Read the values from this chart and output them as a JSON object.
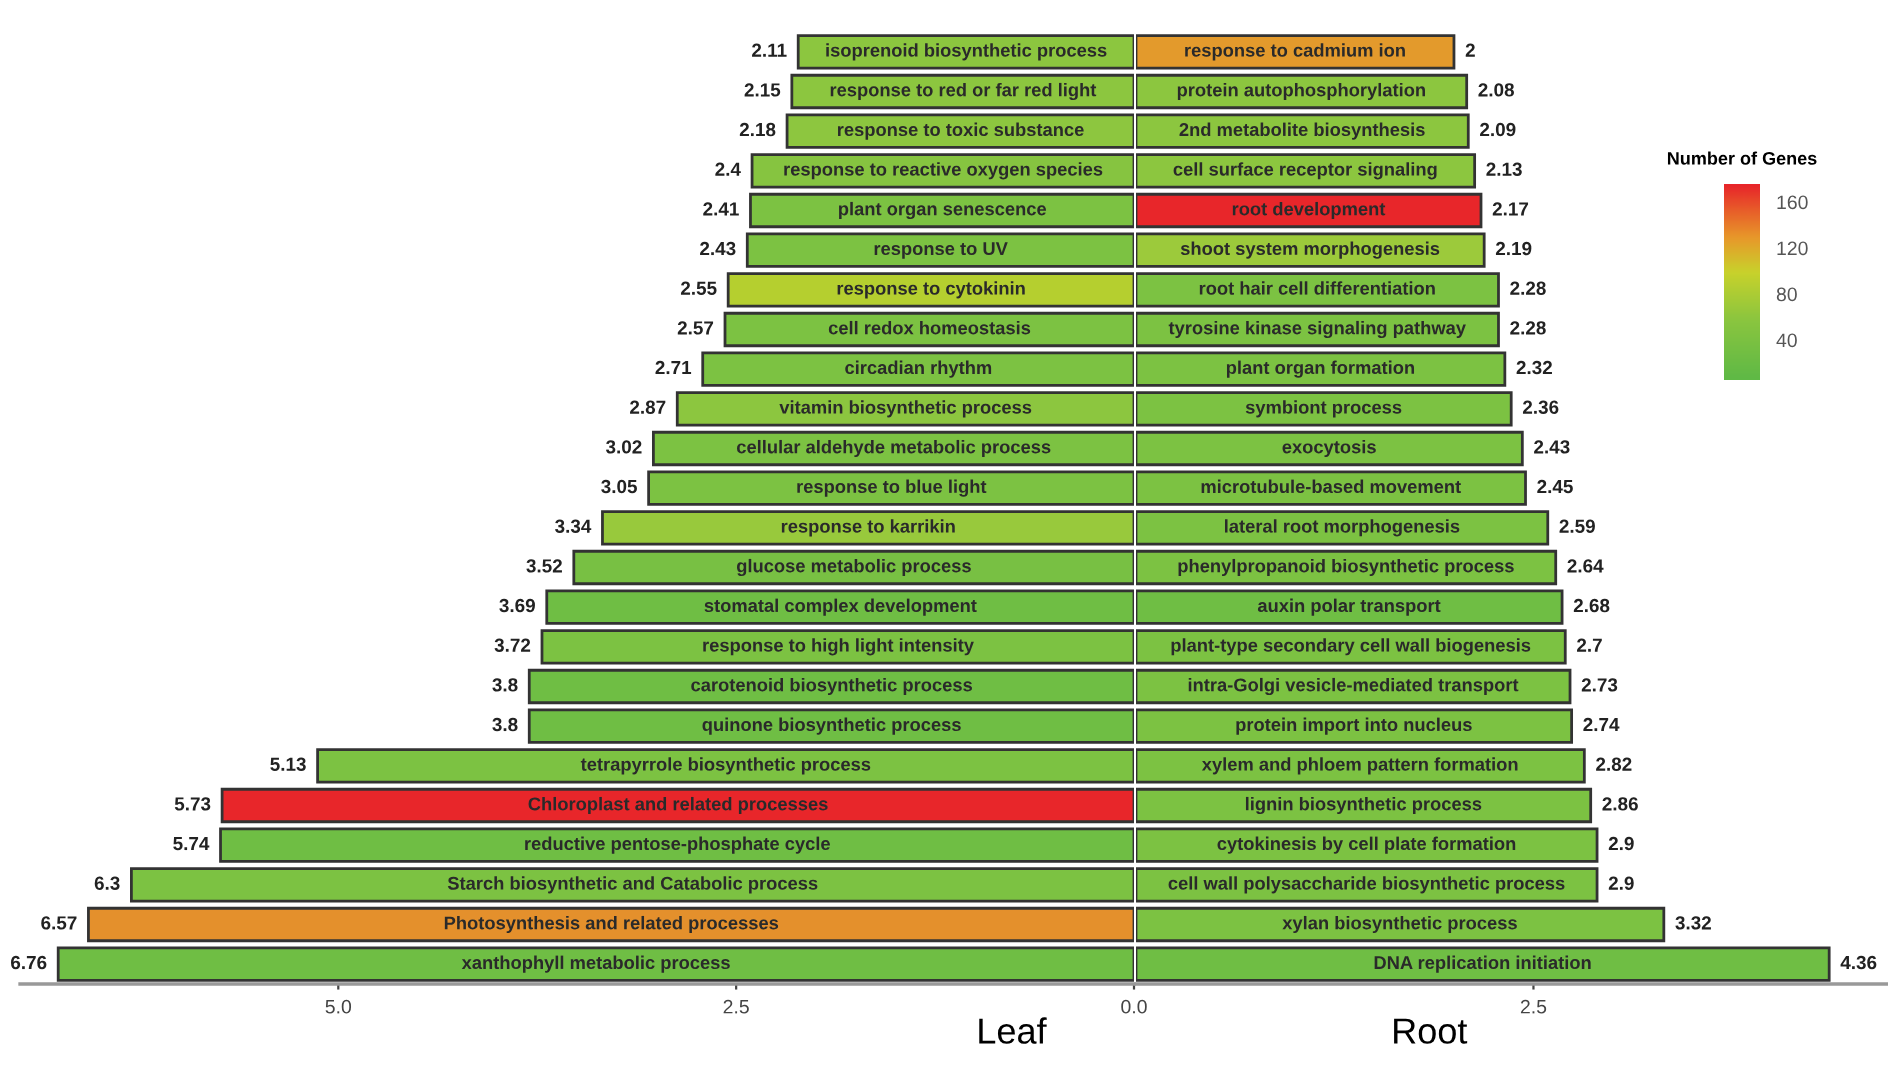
{
  "chart_data": [
    {
      "type": "bar",
      "orientation": "horizontal",
      "xlabel": "Leaf",
      "xlim": [
        7.0,
        0
      ],
      "xticks": [
        {
          "value": 5,
          "label": "5.0"
        },
        {
          "value": 2.5,
          "label": "2.5"
        },
        {
          "value": 0,
          "label": "0.0"
        }
      ],
      "data_labels": true,
      "grid": false,
      "legend": false,
      "categories": [
        "isoprenoid biosynthetic process",
        "response to red or far red light",
        "response to toxic substance",
        "response to reactive oxygen species",
        "plant organ senescence",
        "response to UV",
        "response to cytokinin",
        "cell redox homeostasis",
        "circadian rhythm",
        "vitamin biosynthetic process",
        "cellular aldehyde metabolic process",
        "response to blue light",
        "response to karrikin",
        "glucose metabolic process",
        "stomatal complex development",
        "response to high light intensity",
        "carotenoid biosynthetic process",
        "quinone biosynthetic process",
        "tetrapyrrole biosynthetic process",
        "Chloroplast and related processes",
        "reductive pentose-phosphate cycle",
        "Starch biosynthetic and Catabolic process",
        "Photosynthesis and related processes",
        "xanthophyll metabolic process"
      ],
      "values": [
        2.11,
        2.15,
        2.18,
        2.4,
        2.41,
        2.43,
        2.55,
        2.57,
        2.71,
        2.87,
        3.02,
        3.05,
        3.34,
        3.52,
        3.69,
        3.72,
        3.8,
        3.8,
        5.13,
        5.73,
        5.74,
        6.3,
        6.57,
        6.76
      ],
      "colors": [
        "#8cc63f",
        "#8cc63f",
        "#8dc63f",
        "#86c440",
        "#7cc242",
        "#7cc242",
        "#b5cf2f",
        "#7cc242",
        "#7cc242",
        "#8cc63f",
        "#7cc242",
        "#7cc242",
        "#98c93c",
        "#78c043",
        "#6fbe44",
        "#7cc242",
        "#6fbe44",
        "#6fbe44",
        "#7cc242",
        "#e8262a",
        "#6fbe44",
        "#7cc242",
        "#e4902c",
        "#6fbe44"
      ]
    },
    {
      "type": "bar",
      "orientation": "horizontal",
      "xlabel": "Root",
      "xlim": [
        0,
        4.73
      ],
      "xticks": [
        {
          "value": 2.5,
          "label": "2.5"
        }
      ],
      "data_labels": true,
      "grid": false,
      "legend": false,
      "clabel": "Number of Genes",
      "annotations": [
        "40",
        "80",
        "120",
        "160"
      ],
      "categories": [
        "response to cadmium ion",
        "protein autophosphorylation",
        "2nd metabolite biosynthesis",
        "cell surface receptor signaling",
        "root development",
        "shoot system morphogenesis",
        "root hair cell differentiation",
        "tyrosine kinase signaling pathway",
        "plant organ formation",
        "symbiont process",
        "exocytosis",
        "microtubule-based movement",
        "lateral root morphogenesis",
        "phenylpropanoid biosynthetic process",
        "auxin polar transport",
        "plant-type secondary cell wall biogenesis",
        "intra-Golgi vesicle-mediated transport",
        "protein import into nucleus",
        "xylem and phloem pattern formation",
        "lignin biosynthetic process",
        "cytokinesis by cell plate formation",
        "cell wall polysaccharide biosynthetic process",
        "xylan biosynthetic process",
        "DNA replication initiation"
      ],
      "values": [
        2,
        2.08,
        2.09,
        2.13,
        2.17,
        2.19,
        2.28,
        2.28,
        2.32,
        2.36,
        2.43,
        2.45,
        2.59,
        2.64,
        2.68,
        2.7,
        2.73,
        2.74,
        2.82,
        2.86,
        2.9,
        2.9,
        3.32,
        4.36
      ],
      "colors": [
        "#e39a2c",
        "#8cc63f",
        "#8cc63f",
        "#8cc63f",
        "#e8262a",
        "#9cca3b",
        "#7cc242",
        "#7cc242",
        "#7cc242",
        "#7cc242",
        "#7cc242",
        "#7cc242",
        "#7cc242",
        "#7cc242",
        "#6fbe44",
        "#7cc242",
        "#7cc242",
        "#7cc242",
        "#7cc242",
        "#7cc242",
        "#7cc242",
        "#7cc242",
        "#7cc242",
        "#6fbe44"
      ]
    }
  ]
}
